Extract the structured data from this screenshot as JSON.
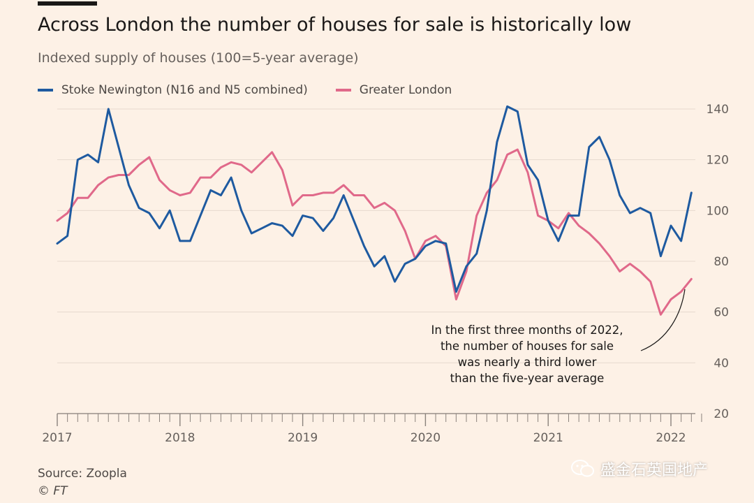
{
  "header": {
    "title": "Across London the number of houses for sale is historically low",
    "subtitle": "Indexed supply of houses (100=5-year average)"
  },
  "legend": [
    {
      "label": "Stoke Newington (N16 and N5 combined)",
      "color": "#1e5aa0"
    },
    {
      "label": "Greater London",
      "color": "#e0698a"
    }
  ],
  "footer": {
    "source": "Source: Zoopla",
    "copyright": "© FT",
    "watermark": "盛金石英国地产",
    "watermark_icon": "wechat-icon"
  },
  "chart_data": {
    "type": "line",
    "title": "Across London the number of houses for sale is historically low",
    "ylabel": "Indexed supply of houses (100=5-year average)",
    "xlabel": "",
    "ylim": [
      20,
      145
    ],
    "yticks": [
      20,
      40,
      60,
      80,
      100,
      120,
      140
    ],
    "xlim": [
      2017.0,
      2022.25
    ],
    "xticks": [
      {
        "value": 2017,
        "label": "2017"
      },
      {
        "value": 2018,
        "label": "2018"
      },
      {
        "value": 2019,
        "label": "2019"
      },
      {
        "value": 2020,
        "label": "2020"
      },
      {
        "value": 2021,
        "label": "2021"
      },
      {
        "value": 2022,
        "label": "2022"
      }
    ],
    "x_start": 2017.0,
    "x_step_months": 1,
    "series": [
      {
        "name": "Stoke Newington (N16 and N5 combined)",
        "color": "#1e5aa0",
        "values": [
          87,
          90,
          120,
          122,
          119,
          140,
          125,
          110,
          101,
          99,
          93,
          100,
          88,
          88,
          98,
          108,
          106,
          113,
          100,
          91,
          93,
          95,
          94,
          90,
          98,
          97,
          92,
          97,
          106,
          96,
          86,
          78,
          82,
          72,
          79,
          81,
          86,
          88,
          87,
          68,
          78,
          83,
          100,
          127,
          141,
          139,
          118,
          112,
          96,
          88,
          98,
          98,
          125,
          129,
          120,
          106,
          99,
          101,
          99,
          82,
          94,
          88,
          107
        ]
      },
      {
        "name": "Greater London",
        "color": "#e0698a",
        "values": [
          96,
          99,
          105,
          105,
          110,
          113,
          114,
          114,
          118,
          121,
          112,
          108,
          106,
          107,
          113,
          113,
          117,
          119,
          118,
          115,
          119,
          123,
          116,
          102,
          106,
          106,
          107,
          107,
          110,
          106,
          106,
          101,
          103,
          100,
          92,
          81,
          88,
          90,
          86,
          65,
          76,
          98,
          107,
          112,
          122,
          124,
          115,
          98,
          96,
          93,
          99,
          94,
          91,
          87,
          82,
          76,
          79,
          76,
          72,
          59,
          65,
          68,
          73
        ]
      }
    ],
    "annotation": {
      "lines": [
        "In the first three months of 2022,",
        "the number of houses for sale",
        "was nearly a third lower",
        "than the five-year average"
      ]
    }
  }
}
